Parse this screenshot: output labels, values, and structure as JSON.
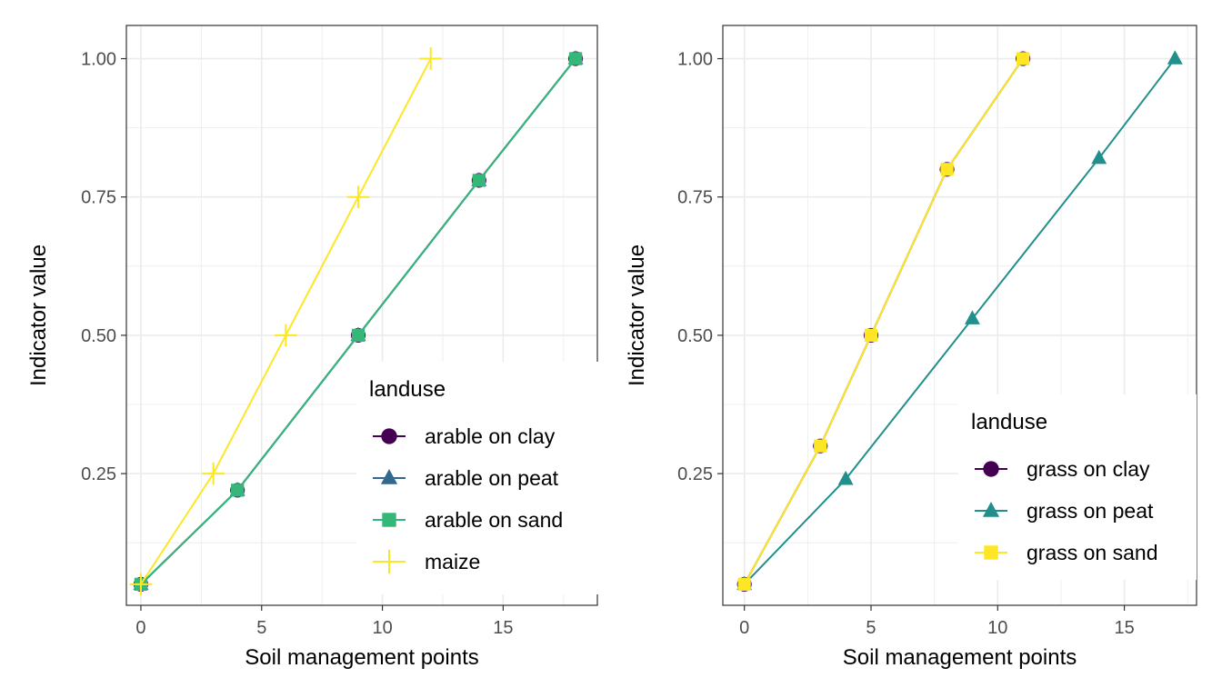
{
  "chart_data": [
    {
      "type": "line",
      "xlabel": "Soil management points",
      "ylabel": "Indicator value",
      "xlim": [
        -0.6,
        18.9
      ],
      "ylim": [
        0.012,
        1.06
      ],
      "x_ticks": [
        0,
        5,
        10,
        15
      ],
      "y_ticks": [
        0.25,
        0.5,
        0.75,
        1.0
      ],
      "x_tick_labels": [
        "0",
        "5",
        "10",
        "15"
      ],
      "y_tick_labels": [
        "0.25",
        "0.50",
        "0.75",
        "1.00"
      ],
      "grid": true,
      "legend": {
        "title": "landuse",
        "placement": "bottom-right inside",
        "entries": [
          "arable on clay",
          "arable on peat",
          "arable on sand",
          "maize"
        ]
      },
      "series": [
        {
          "name": "arable on clay",
          "color": "#440154",
          "shape": "circle",
          "x": [
            0,
            4,
            9,
            14,
            18
          ],
          "y": [
            0.05,
            0.22,
            0.5,
            0.78,
            1.0
          ]
        },
        {
          "name": "arable on peat",
          "color": "#31688E",
          "shape": "triangle",
          "x": [
            0,
            4,
            9,
            14,
            18
          ],
          "y": [
            0.05,
            0.22,
            0.5,
            0.78,
            1.0
          ]
        },
        {
          "name": "arable on sand",
          "color": "#35B779",
          "shape": "square",
          "x": [
            0,
            4,
            9,
            14,
            18
          ],
          "y": [
            0.05,
            0.22,
            0.5,
            0.78,
            1.0
          ]
        },
        {
          "name": "maize",
          "color": "#FDE725",
          "shape": "plus",
          "x": [
            0,
            3,
            6,
            9,
            12
          ],
          "y": [
            0.05,
            0.25,
            0.5,
            0.75,
            1.0
          ]
        }
      ]
    },
    {
      "type": "line",
      "xlabel": "Soil management points",
      "ylabel": "Indicator value",
      "xlim": [
        -0.85,
        17.85
      ],
      "ylim": [
        0.012,
        1.06
      ],
      "x_ticks": [
        0,
        5,
        10,
        15
      ],
      "y_ticks": [
        0.25,
        0.5,
        0.75,
        1.0
      ],
      "x_tick_labels": [
        "0",
        "5",
        "10",
        "15"
      ],
      "y_tick_labels": [
        "0.25",
        "0.50",
        "0.75",
        "1.00"
      ],
      "grid": true,
      "legend": {
        "title": "landuse",
        "placement": "bottom-right inside",
        "entries": [
          "grass on clay",
          "grass on peat",
          "grass on sand"
        ]
      },
      "series": [
        {
          "name": "grass on clay",
          "color": "#440154",
          "shape": "circle",
          "x": [
            0,
            3,
            5,
            8,
            11
          ],
          "y": [
            0.05,
            0.3,
            0.5,
            0.8,
            1.0
          ]
        },
        {
          "name": "grass on peat",
          "color": "#21908C",
          "shape": "triangle",
          "x": [
            0,
            4,
            9,
            14,
            17
          ],
          "y": [
            0.05,
            0.24,
            0.53,
            0.82,
            1.0
          ]
        },
        {
          "name": "grass on sand",
          "color": "#FDE725",
          "shape": "square",
          "x": [
            0,
            3,
            5,
            8,
            11
          ],
          "y": [
            0.05,
            0.3,
            0.5,
            0.8,
            1.0
          ]
        }
      ]
    }
  ]
}
